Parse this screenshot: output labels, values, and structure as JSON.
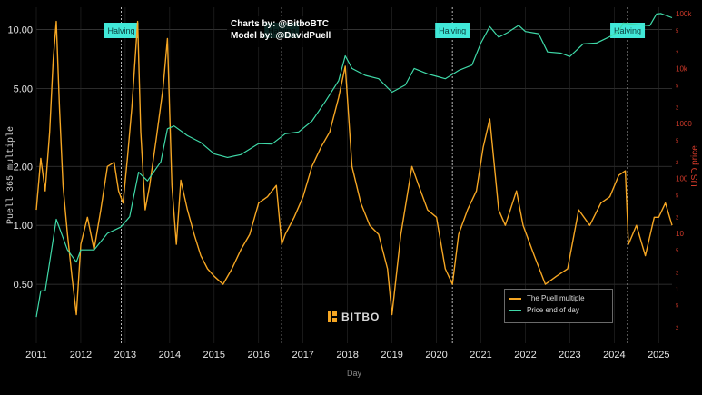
{
  "credits": {
    "charts_by": "Charts by: @BitboBTC",
    "model_by": "Model by: @DavidPuell"
  },
  "logo": {
    "text": "BITBO"
  },
  "chart_data": {
    "type": "line",
    "xlabel": "Day",
    "ylabel_left": "Puell 365 multiple",
    "ylabel_right": "USD price",
    "x_ticks": [
      "2011",
      "2012",
      "2013",
      "2014",
      "2015",
      "2016",
      "2017",
      "2018",
      "2019",
      "2020",
      "2021",
      "2022",
      "2023",
      "2024",
      "2025"
    ],
    "y_left_ticks": [
      "10.00",
      "5.00",
      "2.00",
      "1.00",
      "0.50"
    ],
    "y_left_tick_values": [
      10,
      5,
      2,
      1,
      0.5
    ],
    "y_left_scale": "log",
    "y_left_range": [
      0.25,
      13
    ],
    "y_right_scale": "log",
    "y_right_ticks": [
      "2",
      "5",
      "100k",
      "2",
      "5",
      "10k",
      "2",
      "5",
      "1000",
      "2",
      "5",
      "100",
      "2",
      "5",
      "10",
      "2",
      "5",
      "1",
      "2",
      "5"
    ],
    "y_right_tick_values": [
      200000,
      500000,
      100000,
      20000,
      50000,
      10000,
      2000,
      5000,
      1000,
      200,
      500,
      100,
      20,
      50,
      10,
      2,
      5,
      1,
      0.2,
      0.5
    ],
    "y_right_range": [
      0.1,
      130000
    ],
    "x_range": [
      2011.0,
      2025.3
    ],
    "halvings": {
      "label": "Halving",
      "dates": [
        2012.91,
        2016.52,
        2020.36,
        2024.3
      ]
    },
    "legend_placement": "bottom-right",
    "grid": true,
    "series": [
      {
        "name": "The Puell multiple",
        "color": "#f5a623",
        "axis": "left",
        "x": [
          2011.0,
          2011.1,
          2011.2,
          2011.3,
          2011.38,
          2011.45,
          2011.52,
          2011.6,
          2011.7,
          2011.8,
          2011.9,
          2012.0,
          2012.15,
          2012.3,
          2012.45,
          2012.6,
          2012.75,
          2012.85,
          2012.95,
          2013.05,
          2013.15,
          2013.28,
          2013.35,
          2013.45,
          2013.55,
          2013.7,
          2013.85,
          2013.95,
          2014.05,
          2014.15,
          2014.25,
          2014.4,
          2014.55,
          2014.7,
          2014.85,
          2015.0,
          2015.2,
          2015.4,
          2015.6,
          2015.8,
          2016.0,
          2016.2,
          2016.4,
          2016.52,
          2016.6,
          2016.8,
          2017.0,
          2017.2,
          2017.4,
          2017.6,
          2017.8,
          2017.95,
          2018.1,
          2018.3,
          2018.5,
          2018.7,
          2018.9,
          2019.0,
          2019.2,
          2019.45,
          2019.6,
          2019.8,
          2020.0,
          2020.2,
          2020.36,
          2020.5,
          2020.7,
          2020.9,
          2021.05,
          2021.2,
          2021.4,
          2021.55,
          2021.8,
          2021.95,
          2022.2,
          2022.45,
          2022.7,
          2022.95,
          2023.2,
          2023.45,
          2023.7,
          2023.9,
          2024.1,
          2024.25,
          2024.32,
          2024.5,
          2024.7,
          2024.9,
          2025.0,
          2025.15,
          2025.3
        ],
        "y": [
          1.2,
          2.2,
          1.5,
          3.0,
          7.0,
          11.0,
          4.0,
          1.6,
          0.9,
          0.55,
          0.35,
          0.8,
          1.1,
          0.75,
          1.2,
          2.0,
          2.1,
          1.5,
          1.3,
          2.2,
          4.0,
          11.0,
          3.0,
          1.2,
          1.6,
          2.8,
          5.0,
          9.0,
          1.6,
          0.8,
          1.7,
          1.2,
          0.9,
          0.7,
          0.6,
          0.55,
          0.5,
          0.6,
          0.75,
          0.9,
          1.3,
          1.4,
          1.6,
          0.8,
          0.9,
          1.1,
          1.4,
          2.0,
          2.5,
          3.0,
          4.5,
          6.5,
          2.0,
          1.3,
          1.0,
          0.9,
          0.6,
          0.35,
          0.9,
          2.0,
          1.6,
          1.2,
          1.1,
          0.6,
          0.5,
          0.9,
          1.2,
          1.5,
          2.5,
          3.5,
          1.2,
          1.0,
          1.5,
          1.0,
          0.7,
          0.5,
          0.55,
          0.6,
          1.2,
          1.0,
          1.3,
          1.4,
          1.8,
          1.9,
          0.8,
          1.0,
          0.7,
          1.1,
          1.1,
          1.3,
          1.0
        ]
      },
      {
        "name": "Price end of day",
        "color": "#3fd9a8",
        "axis": "right",
        "x": [
          2011.0,
          2011.1,
          2011.2,
          2011.3,
          2011.45,
          2011.7,
          2011.9,
          2012.0,
          2012.3,
          2012.6,
          2012.9,
          2013.1,
          2013.3,
          2013.5,
          2013.8,
          2013.95,
          2014.1,
          2014.4,
          2014.7,
          2015.0,
          2015.3,
          2015.6,
          2016.0,
          2016.3,
          2016.6,
          2016.9,
          2017.2,
          2017.5,
          2017.8,
          2017.95,
          2018.1,
          2018.4,
          2018.7,
          2019.0,
          2019.3,
          2019.5,
          2019.8,
          2020.0,
          2020.2,
          2020.5,
          2020.8,
          2021.0,
          2021.2,
          2021.4,
          2021.6,
          2021.85,
          2022.0,
          2022.3,
          2022.5,
          2022.8,
          2023.0,
          2023.3,
          2023.6,
          2023.9,
          2024.1,
          2024.2,
          2024.5,
          2024.8,
          2024.95,
          2025.05,
          2025.3
        ],
        "y": [
          0.3,
          0.9,
          0.9,
          3,
          18,
          5,
          3,
          5,
          5,
          10,
          13,
          20,
          130,
          90,
          200,
          800,
          900,
          600,
          450,
          280,
          240,
          270,
          430,
          420,
          650,
          700,
          1100,
          2500,
          6000,
          17000,
          10000,
          7500,
          6500,
          3700,
          5000,
          10000,
          8000,
          7200,
          6500,
          9200,
          11500,
          29000,
          58000,
          37000,
          45000,
          61000,
          47000,
          43000,
          20000,
          19000,
          16500,
          28000,
          29000,
          38000,
          47000,
          67000,
          63000,
          60000,
          98000,
          100000,
          84000
        ]
      }
    ]
  }
}
